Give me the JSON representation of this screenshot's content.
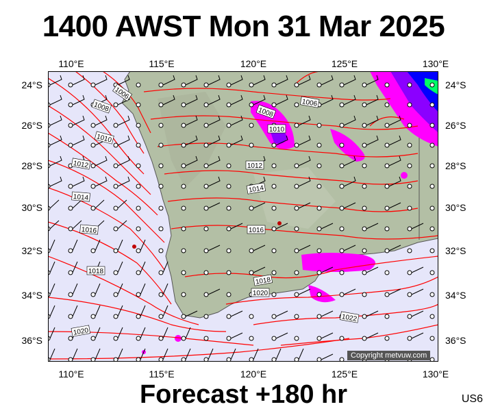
{
  "title": "1400 AWST Mon 31 Mar 2025",
  "footer": "Forecast +180 hr",
  "code": "US6",
  "copyright": "Copyright metvuw.com",
  "colors": {
    "sea": "#e6e6fa",
    "land": "#b3bfa5",
    "isobar": "#ff0000",
    "rain_light": "#ff00ff",
    "rain_mid": "#8b00ff",
    "rain_heavy": "#0000ff"
  },
  "lon_ticks": [
    "110°E",
    "115°E",
    "120°E",
    "125°E",
    "130°E"
  ],
  "lat_ticks": [
    "24°S",
    "26°S",
    "28°S",
    "30°S",
    "32°S",
    "34°S",
    "36°S"
  ],
  "isobar_labels": [
    "1006",
    "1008",
    "1010",
    "1012",
    "1014",
    "1016",
    "1018",
    "1006",
    "1008",
    "1010",
    "1012",
    "1014",
    "1016",
    "1018",
    "1020",
    "1020",
    "1022"
  ]
}
